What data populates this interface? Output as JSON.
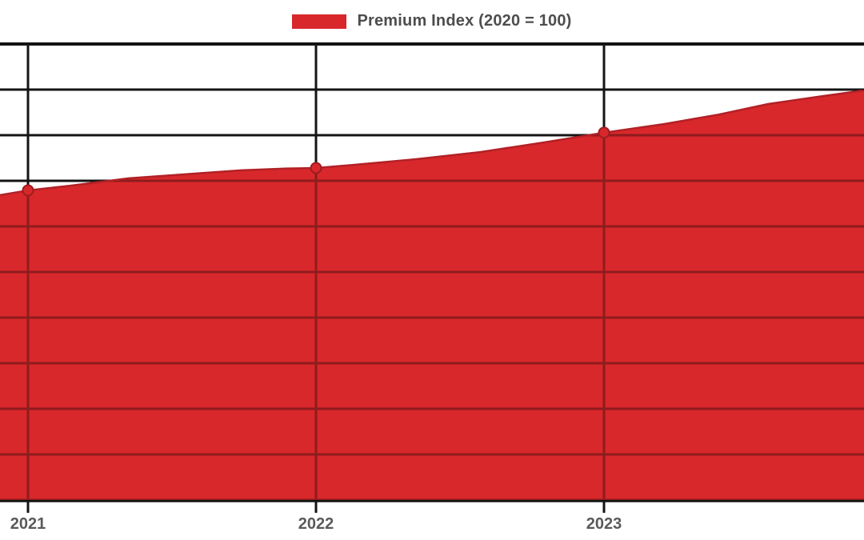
{
  "chart_data": {
    "type": "area",
    "legend": "Premium Index (2020 = 100)",
    "legend_position": "top-center",
    "grid": true,
    "x_ticks": [
      {
        "year": 2021,
        "label": "2021"
      },
      {
        "year": 2022,
        "label": "2022"
      },
      {
        "year": 2023,
        "label": "2023"
      }
    ],
    "ylim": [
      0,
      200
    ],
    "y_gridline_step": 20,
    "x_visible_range": [
      2020.9,
      2023.9
    ],
    "series": [
      {
        "name": "Premium Index (2020 = 100)",
        "points": [
          {
            "year": 2021,
            "value": 135.8
          },
          {
            "year": 2022,
            "value": 145.6
          },
          {
            "year": 2023,
            "value": 161.1
          }
        ],
        "curve_samples": [
          [
            2020.9,
            133.7
          ],
          [
            2021.0,
            135.8
          ],
          [
            2021.15,
            137.9
          ],
          [
            2021.35,
            141.1
          ],
          [
            2021.54,
            142.8
          ],
          [
            2021.74,
            144.6
          ],
          [
            2021.9,
            145.4
          ],
          [
            2022.0,
            145.6
          ],
          [
            2022.13,
            147.0
          ],
          [
            2022.35,
            149.5
          ],
          [
            2022.57,
            152.6
          ],
          [
            2022.79,
            156.8
          ],
          [
            2023.0,
            161.1
          ],
          [
            2023.21,
            164.9
          ],
          [
            2023.4,
            169.1
          ],
          [
            2023.57,
            173.7
          ],
          [
            2023.74,
            176.8
          ],
          [
            2023.9,
            179.6
          ]
        ]
      }
    ]
  },
  "colors": {
    "fill_red": "#d8282b",
    "line_red": "#b22126",
    "marker_fill": "#d8282b",
    "marker_stroke": "#9e1c21",
    "grid_dark_red": "#8e1b1e",
    "grid_black": "#141414",
    "legend_text": "#4d4d4d",
    "axis_label": "#5a5a5a"
  }
}
